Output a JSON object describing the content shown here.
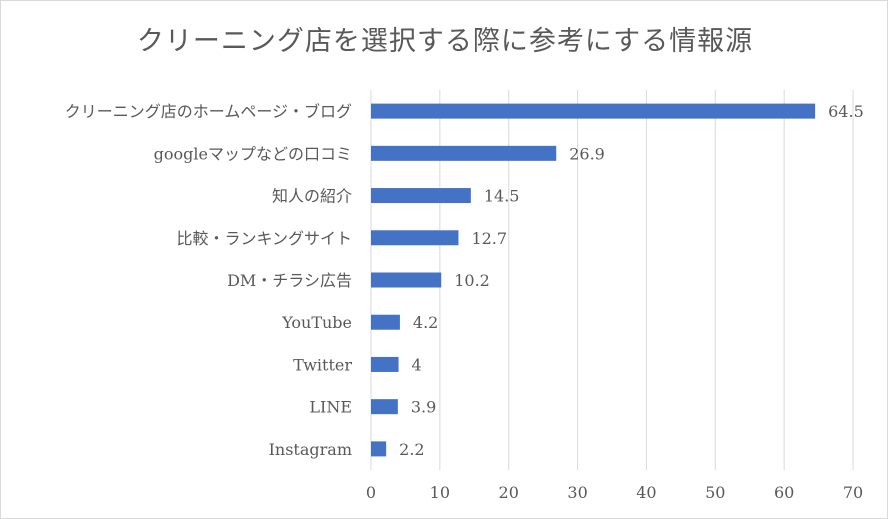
{
  "chart_data": {
    "type": "bar",
    "orientation": "horizontal",
    "title": "クリーニング店を選択する際に参考にする情報源",
    "categories": [
      "クリーニング店のホームページ・ブログ",
      "googleマップなどの口コミ",
      "知人の紹介",
      "比較・ランキングサイト",
      "DM・チラシ広告",
      "YouTube",
      "Twitter",
      "LINE",
      "Instagram"
    ],
    "values": [
      64.5,
      26.9,
      14.5,
      12.7,
      10.2,
      4.2,
      4,
      3.9,
      2.2
    ],
    "value_labels": [
      "64.5",
      "26.9",
      "14.5",
      "12.7",
      "10.2",
      "4.2",
      "4",
      "3.9",
      "2.2"
    ],
    "xlim": [
      0,
      70
    ],
    "xticks": [
      "0",
      "10",
      "20",
      "30",
      "40",
      "50",
      "60",
      "70"
    ],
    "grid": true,
    "bar_color": "#4472c4",
    "grid_color": "#d9d9d9"
  }
}
